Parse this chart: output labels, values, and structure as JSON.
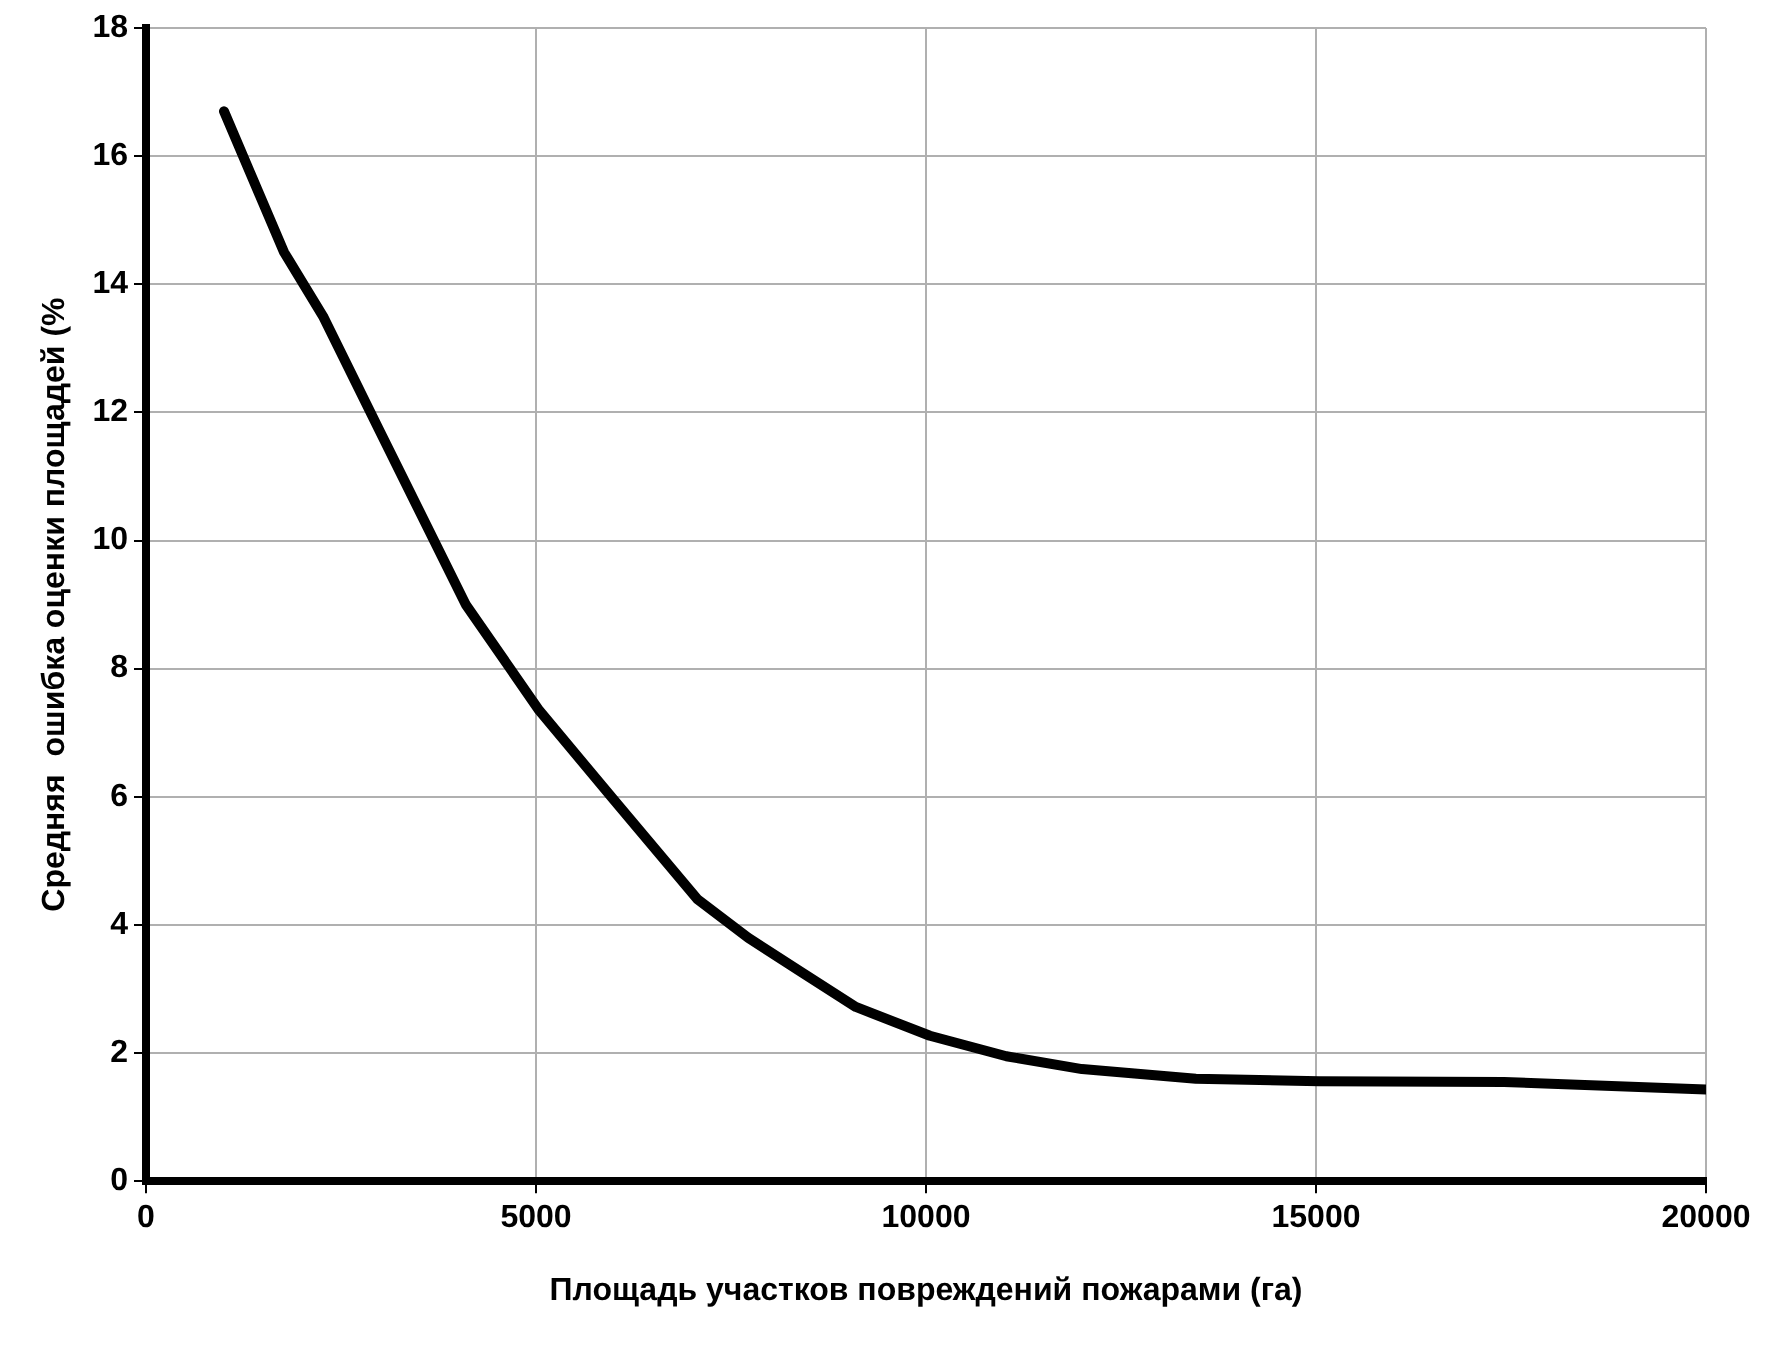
{
  "chart_data": {
    "type": "line",
    "xlabel": "Площадь участков повреждений пожарами (га)",
    "ylabel": "Средняя  ошибка оценки площадей (%",
    "series": [
      {
        "color": "#000000",
        "x": [
          1000,
          1770,
          2270,
          3000,
          4100,
          5040,
          6000,
          7070,
          7720,
          8420,
          9100,
          10050,
          11030,
          12000,
          13460,
          15040,
          17410,
          20000
        ],
        "values": [
          16.7,
          14.5,
          13.5,
          11.7,
          9.0,
          7.35,
          5.95,
          4.4,
          3.8,
          3.25,
          2.72,
          2.27,
          1.95,
          1.75,
          1.6,
          1.56,
          1.55,
          1.43
        ]
      }
    ],
    "xlim": [
      0,
      20000
    ],
    "xticks": [
      0,
      5000,
      10000,
      15000,
      20000
    ],
    "ylim": [
      0,
      18
    ],
    "yticks": [
      0,
      2,
      4,
      6,
      8,
      10,
      12,
      14,
      16,
      18
    ],
    "grid": true,
    "legend": false,
    "marker": "none",
    "line_style": "solid"
  }
}
